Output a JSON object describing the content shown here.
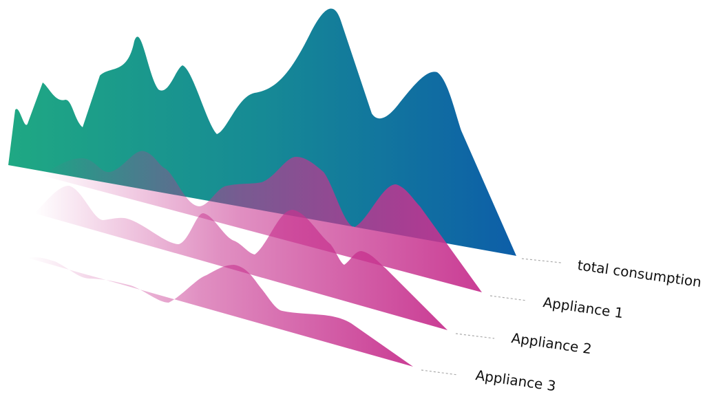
{
  "labels": [
    "total consumption",
    "Appliance 1",
    "Appliance 2",
    "Appliance 3"
  ]
}
